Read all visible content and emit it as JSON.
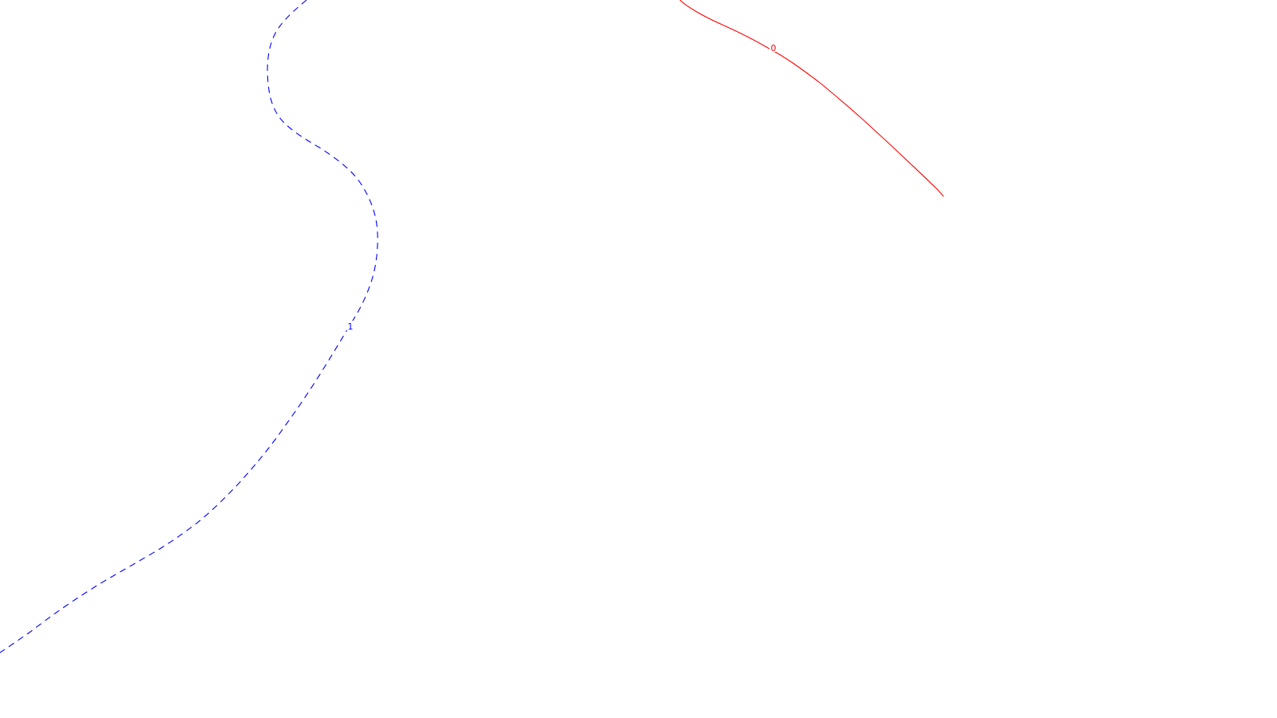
{
  "contours": [
    {
      "id": "contour-0",
      "label": "0",
      "color": "#ff0000",
      "line_style": "solid"
    },
    {
      "id": "contour-1",
      "label": "1",
      "color": "#0000ff",
      "line_style": "dashed"
    }
  ]
}
